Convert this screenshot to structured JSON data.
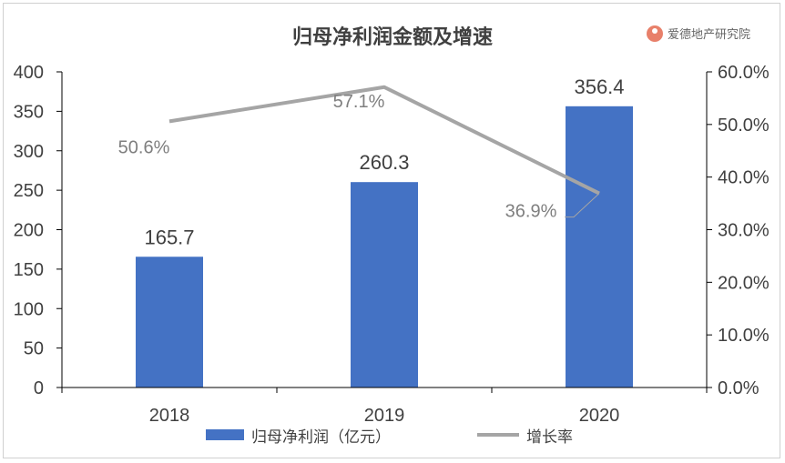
{
  "chart_data": {
    "type": "bar",
    "title": "归母净利润金额及增速",
    "categories": [
      "2018",
      "2019",
      "2020"
    ],
    "series": [
      {
        "name": "归母净利润（亿元）",
        "type": "bar",
        "axis": "left",
        "values": [
          165.7,
          260.3,
          356.4
        ],
        "labels": [
          "165.7",
          "260.3",
          "356.4"
        ],
        "color": "#4472c4"
      },
      {
        "name": "增长率",
        "type": "line",
        "axis": "right",
        "values": [
          50.6,
          57.1,
          36.9
        ],
        "labels": [
          "50.6%",
          "57.1%",
          "36.9%"
        ],
        "color": "#a5a5a5"
      }
    ],
    "y_left": {
      "min": 0,
      "max": 400,
      "ticks": [
        "0",
        "50",
        "100",
        "150",
        "200",
        "250",
        "300",
        "350",
        "400"
      ]
    },
    "y_right": {
      "min": 0,
      "max": 60,
      "ticks": [
        "0.0%",
        "10.0%",
        "20.0%",
        "30.0%",
        "40.0%",
        "50.0%",
        "60.0%"
      ]
    },
    "legend_position": "bottom",
    "grid": false
  },
  "watermark": {
    "text": "爱德地产研究院",
    "color": "#e8806a"
  }
}
